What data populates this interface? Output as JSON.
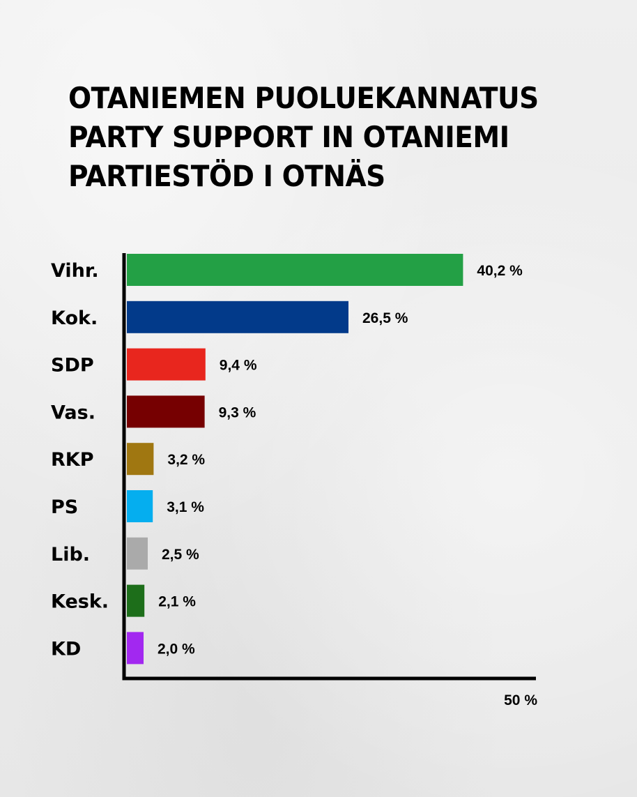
{
  "title_lines": [
    "OTANIEMEN PUOLUEKANNATUS",
    "PARTY SUPPORT IN OTANIEMI",
    "PARTIESTÖD I OTNÄS"
  ],
  "chart_data": {
    "type": "bar",
    "orientation": "horizontal",
    "title": "OTANIEMEN PUOLUEKANNATUS / PARTY SUPPORT IN OTANIEMI / PARTIESTÖD I OTNÄS",
    "categories": [
      "Vihr.",
      "Kok.",
      "SDP",
      "Vas.",
      "RKP",
      "PS",
      "Lib.",
      "Kesk.",
      "KD"
    ],
    "values": [
      40.2,
      26.5,
      9.4,
      9.3,
      3.2,
      3.1,
      2.5,
      2.1,
      2.0
    ],
    "value_labels": [
      "40,2 %",
      "26,5 %",
      "9,4 %",
      "9,3 %",
      "3,2 %",
      "3,1 %",
      "2,5 %",
      "2,1 %",
      "2,0 %"
    ],
    "colors": [
      "#23a045",
      "#023a8a",
      "#e8261e",
      "#760001",
      "#a07711",
      "#05aeef",
      "#aaaaaa",
      "#1d6e1a",
      "#a228f0"
    ],
    "xlim": [
      0,
      50
    ],
    "x_axis_max_label": "50 %",
    "grid": false,
    "legend": "none"
  }
}
